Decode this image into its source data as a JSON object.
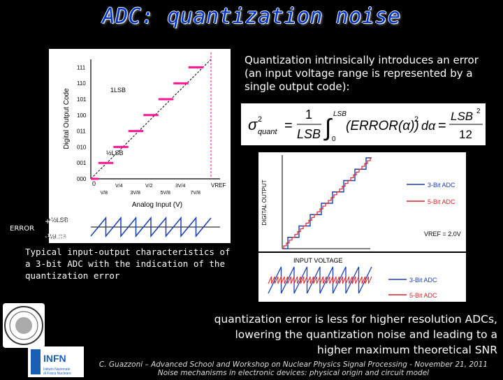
{
  "slide": {
    "title": "ADC: quantization noise",
    "intro_text": "Quantization intrinsically introduces an error (an input voltage range is represented by a single output code):",
    "caption": "Typical input-output characteristics of a 3-bit ADC with the indication of the quantization error",
    "conclusion": "quantization error is less for higher resolution ADCs, lowering the quantization noise and leading to a higher maximum theoretical SNR",
    "footer_line1": "C. Guazzoni – Advanced School and Workshop on Nuclear Physics Signal Processing - November 21, 2011",
    "footer_line2": "Noise mechanisms in electronic devices: physical origin and circuit model"
  },
  "left_graph": {
    "ylabel": "Digital Output Code",
    "xlabel": "Analog Input (V)",
    "codes": [
      "000",
      "001",
      "010",
      "011",
      "100",
      "101",
      "110",
      "111"
    ],
    "lsb_label": "1LSB",
    "half_lsb_label": "½LSB",
    "error_label": "ERROR",
    "error_plus": "+½LSB",
    "error_minus": "-½LSB",
    "zero_label": "0",
    "x_fractions": [
      "V/8",
      "V/4",
      "3V/8",
      "V/2",
      "5V/8",
      "3V/4",
      "7V/8"
    ],
    "vref_label": "VREF",
    "colors": {
      "steps": "#ff1493",
      "ideal": "#000000",
      "axis": "#000000"
    }
  },
  "right_graph": {
    "ylabel": "DIGITAL OUTPUT",
    "xlabel": "INPUT VOLTAGE",
    "legend": [
      "3-Bit ADC",
      "5-Bit ADC"
    ],
    "vref_text": "VREF = 2.0V",
    "colors": {
      "three_bit": "#1a3fb0",
      "five_bit": "#d4242a"
    }
  },
  "error_wave": {
    "legend": [
      "3-Bit ADC",
      "5-Bit ADC"
    ],
    "colors": {
      "three_bit": "#1a3fb0",
      "five_bit": "#d4242a"
    }
  },
  "formula": {
    "lhs": "σ²quant",
    "rhs": "LSB²/12",
    "text": "σ²quant = 1/LSB ∫₀^LSB (ERROR(α))² dα = LSB²/12"
  }
}
